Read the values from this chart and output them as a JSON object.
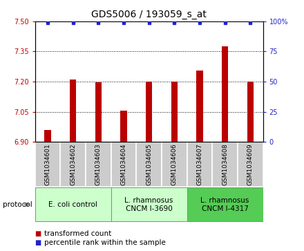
{
  "title": "GDS5006 / 193059_s_at",
  "samples": [
    "GSM1034601",
    "GSM1034602",
    "GSM1034603",
    "GSM1034604",
    "GSM1034605",
    "GSM1034606",
    "GSM1034607",
    "GSM1034608",
    "GSM1034609"
  ],
  "transformed_counts": [
    6.96,
    7.21,
    7.195,
    7.055,
    7.2,
    7.2,
    7.255,
    7.375,
    7.2
  ],
  "percentile_ranks": [
    99,
    99,
    99,
    99,
    99,
    99,
    99,
    99,
    99
  ],
  "ylim_left": [
    6.9,
    7.5
  ],
  "yticks_left": [
    6.9,
    7.05,
    7.2,
    7.35,
    7.5
  ],
  "yticks_right": [
    0,
    25,
    50,
    75,
    100
  ],
  "ylim_right": [
    0,
    100
  ],
  "bar_color": "#bb0000",
  "dot_color": "#2222cc",
  "bg_color": "#ffffff",
  "grid_color": "#000000",
  "groups": [
    {
      "label": "E. coli control",
      "start": 0,
      "end": 3,
      "color": "#ccffcc"
    },
    {
      "label": "L. rhamnosus\nCNCM I-3690",
      "start": 3,
      "end": 6,
      "color": "#ccffcc"
    },
    {
      "label": "L. rhamnosus\nCNCM I-4317",
      "start": 6,
      "end": 9,
      "color": "#55cc55"
    }
  ],
  "legend_bar_label": "transformed count",
  "legend_dot_label": "percentile rank within the sample",
  "protocol_label": "protocol",
  "sample_box_color": "#cccccc",
  "title_fontsize": 10,
  "tick_fontsize": 7,
  "sample_fontsize": 6.5,
  "group_fontsize": 7.5,
  "legend_fontsize": 7.5,
  "bar_width": 0.25
}
